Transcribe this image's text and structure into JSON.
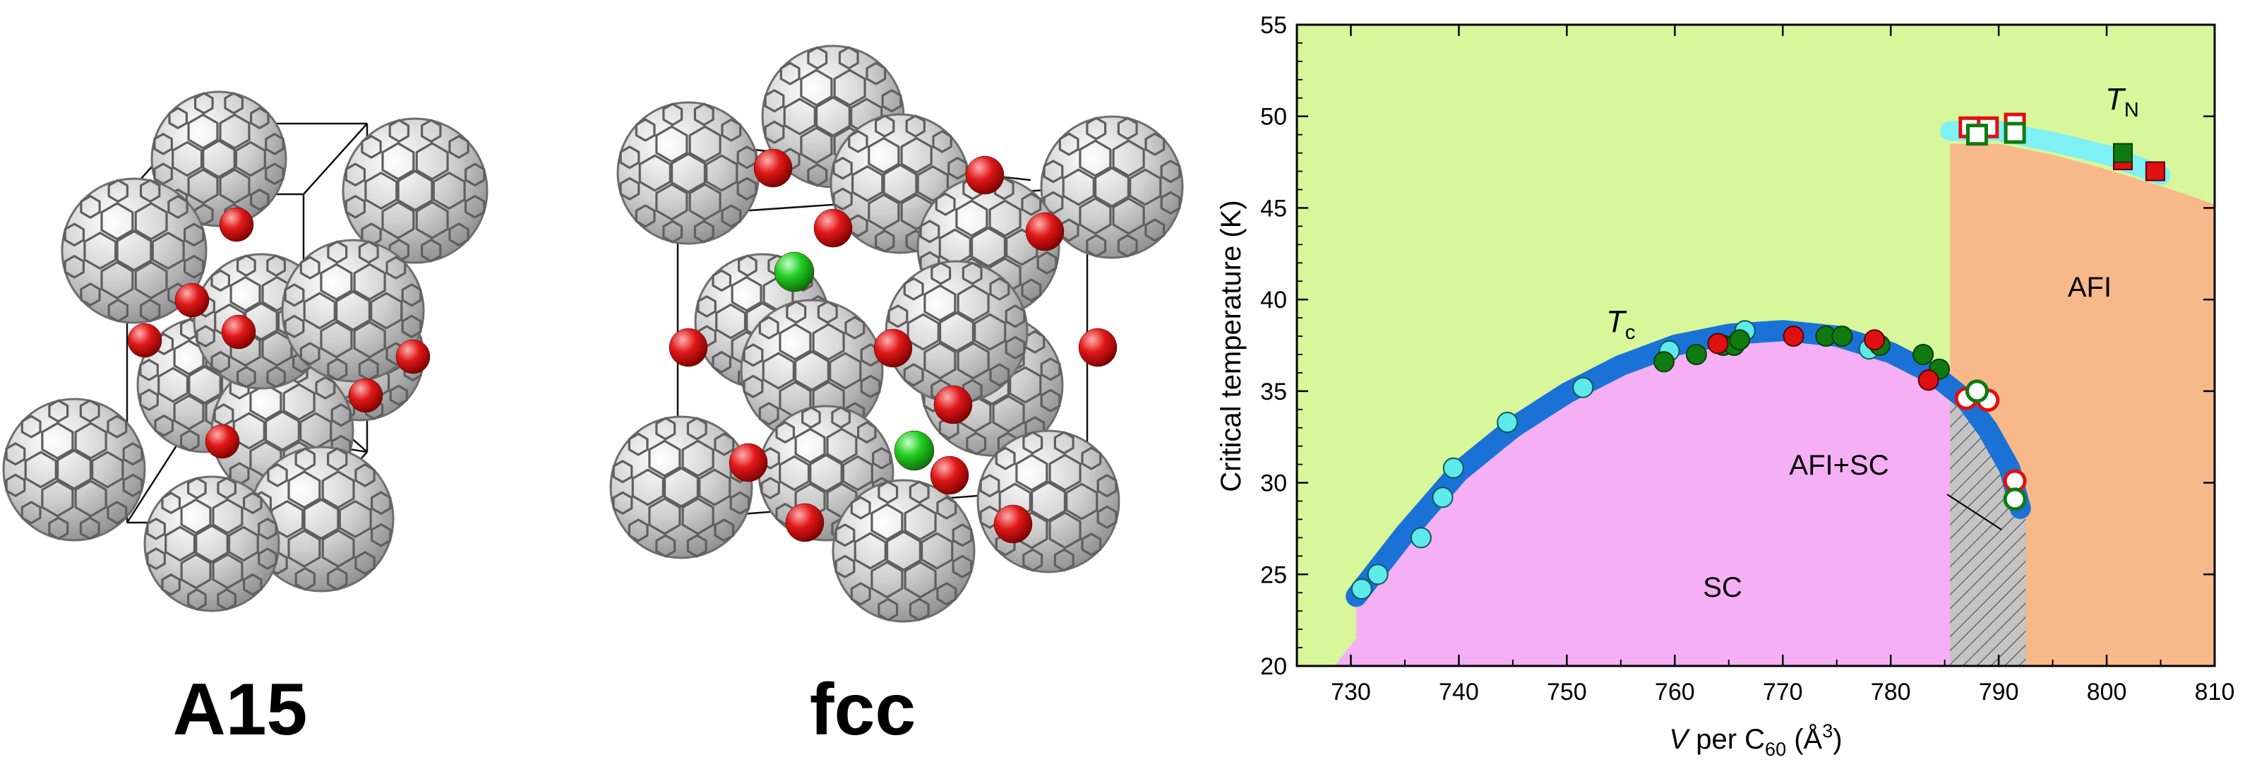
{
  "panels": {
    "a15_label": "A15",
    "fcc_label": "fcc"
  },
  "colors": {
    "fullerene": "#c9c9c9",
    "cation_red": "#e01818",
    "cation_green": "#22cc22",
    "sc_region": "#f5b0f5",
    "afi_region": "#f7b98a",
    "background_region": "#d7f79a",
    "tc_band": "#1a72d6",
    "tn_band": "#7ff0f4",
    "hatch": "#b8b8b8",
    "marker_cyan": "#5eeaea",
    "marker_green": "#0f7a0f",
    "marker_red": "#e01010"
  },
  "chart_data": {
    "type": "scatter",
    "xlabel_italic": "V",
    "xlabel_rest": " per C",
    "xlabel_sub": "60",
    "xlabel_unit": " (Å",
    "xlabel_sup": "3",
    "xlabel_close": ")",
    "ylabel": "Critical temperature (K)",
    "xlim": [
      725,
      810
    ],
    "ylim": [
      20,
      55
    ],
    "xticks": [
      730,
      740,
      750,
      760,
      770,
      780,
      790,
      800,
      810
    ],
    "yticks": [
      20,
      25,
      30,
      35,
      40,
      45,
      50,
      55
    ],
    "region_labels": {
      "sc": "SC",
      "afi": "AFI",
      "afi_sc": "AFI+SC"
    },
    "curve_labels": {
      "tc_main": "T",
      "tc_sub": "c",
      "tn_main": "T",
      "tn_sub": "N"
    },
    "tc_curve": {
      "x": [
        730.5,
        735,
        740,
        745,
        750,
        755,
        760,
        765,
        770,
        775,
        780,
        784,
        787,
        789,
        791,
        792
      ],
      "y": [
        23.8,
        27.2,
        30.6,
        33.0,
        34.9,
        36.4,
        37.5,
        38.1,
        38.3,
        38.0,
        37.1,
        35.9,
        34.5,
        32.9,
        30.8,
        28.6
      ]
    },
    "tn_curve": {
      "x": [
        785.5,
        790,
        795,
        800,
        805
      ],
      "y": [
        49.2,
        49.2,
        48.6,
        47.9,
        46.8
      ]
    },
    "afi_boundary": {
      "x": [
        785.5,
        790,
        795,
        800,
        805,
        810
      ],
      "y": [
        48.5,
        48.5,
        47.9,
        47.1,
        46.2,
        45.2
      ]
    },
    "coexistence_range": [
      785.5,
      792.5
    ],
    "series": [
      {
        "marker": "circle",
        "fill": "cyan",
        "x": [
          731,
          732.5,
          736.5,
          738.5,
          739.5,
          744.5,
          751.5,
          759.5,
          766.5,
          778
        ],
        "y": [
          24.2,
          25.0,
          27.0,
          29.2,
          30.8,
          33.3,
          35.2,
          37.2,
          38.3,
          37.3
        ]
      },
      {
        "marker": "circle",
        "fill": "green",
        "x": [
          759,
          762,
          764.5,
          765.5,
          766,
          774,
          775.5,
          779,
          783,
          784.5
        ],
        "y": [
          36.6,
          37.0,
          37.5,
          37.5,
          37.8,
          38.0,
          38.0,
          37.5,
          37.0,
          36.2
        ]
      },
      {
        "marker": "circle",
        "fill": "red",
        "x": [
          764,
          771,
          778.5,
          783.5
        ],
        "y": [
          37.6,
          38.0,
          37.8,
          35.6
        ]
      },
      {
        "marker": "circle",
        "fill": "white-red-edge",
        "x": [
          787,
          789,
          791.5
        ],
        "y": [
          34.6,
          34.5,
          30.1
        ]
      },
      {
        "marker": "circle",
        "fill": "white-green-edge",
        "x": [
          788,
          791.5
        ],
        "y": [
          35.0,
          29.1
        ]
      },
      {
        "marker": "square",
        "fill": "white-red-edge",
        "x": [
          787.3,
          789,
          791.5
        ],
        "y": [
          49.4,
          49.4,
          49.6
        ]
      },
      {
        "marker": "square",
        "fill": "white-green-edge",
        "x": [
          788,
          791.5
        ],
        "y": [
          49.0,
          49.1
        ]
      },
      {
        "marker": "square",
        "fill": "red",
        "x": [
          801.5,
          804.5
        ],
        "y": [
          47.6,
          47.0
        ]
      },
      {
        "marker": "square",
        "fill": "green",
        "x": [
          801.5
        ],
        "y": [
          48.0
        ]
      }
    ]
  }
}
